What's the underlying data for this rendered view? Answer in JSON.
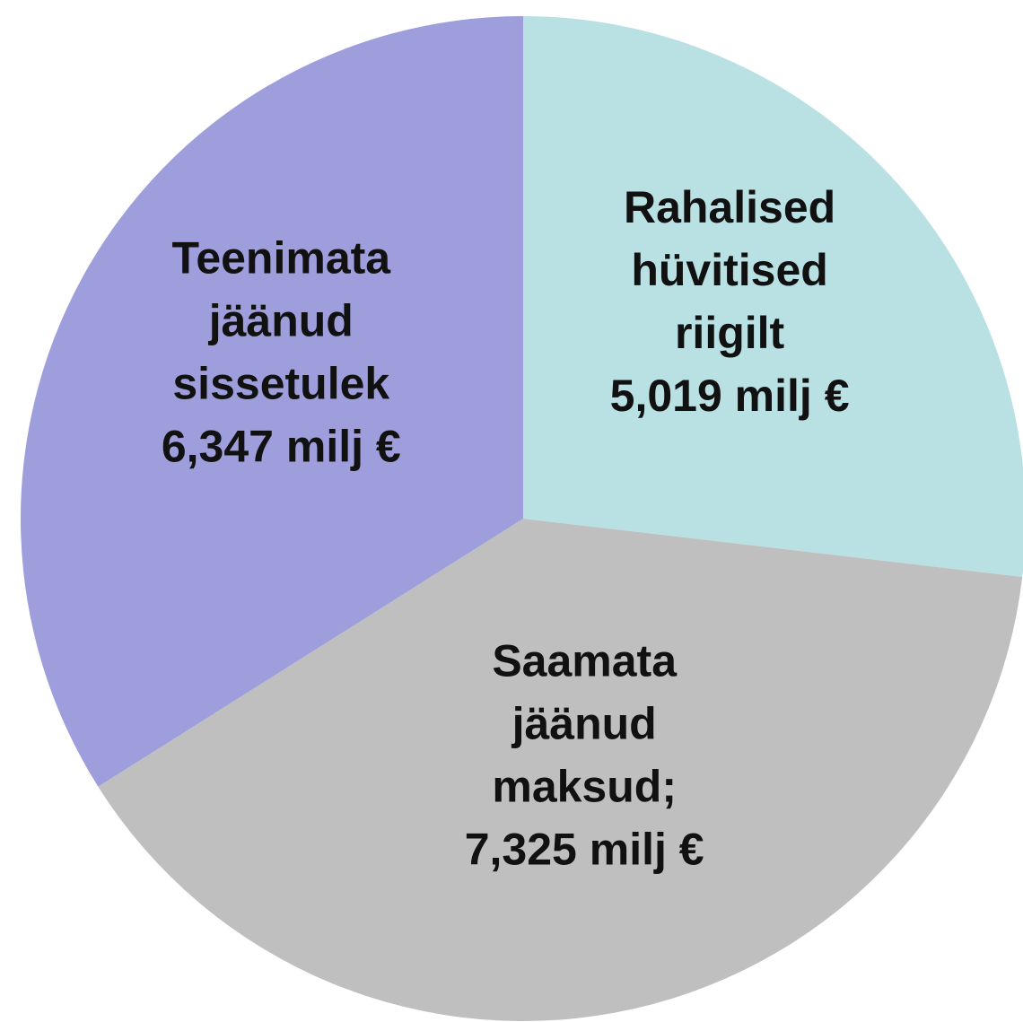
{
  "chart_data": {
    "type": "pie",
    "categories": [
      "Rahalised hüvitised riigilt",
      "Saamata jäänud maksud;",
      "Teenimata jäänud sissetulek"
    ],
    "values": [
      5.019,
      7.325,
      6.347
    ],
    "value_labels": [
      "5,019 milj €",
      "7,325 milj €",
      "6,347 milj €"
    ],
    "colors": [
      "#b9e0e3",
      "#bfbfbf",
      "#9e9edc"
    ]
  }
}
